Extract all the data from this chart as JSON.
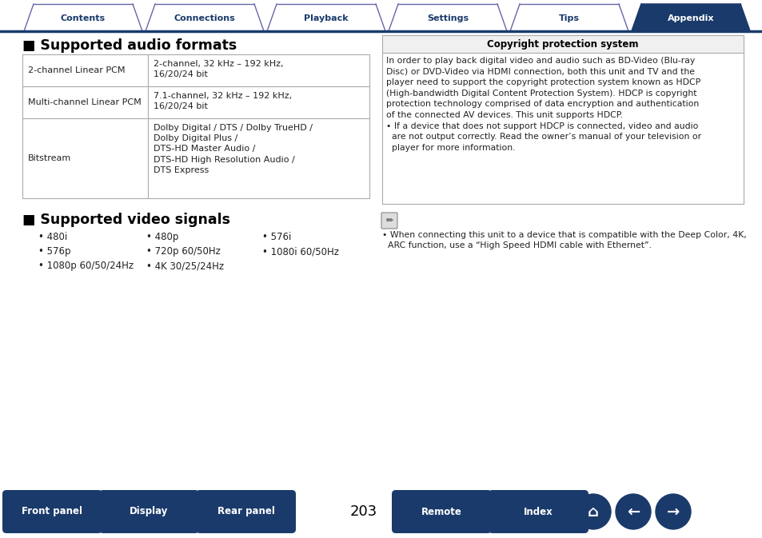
{
  "tab_labels": [
    "Contents",
    "Connections",
    "Playback",
    "Settings",
    "Tips",
    "Appendix"
  ],
  "tab_active": 5,
  "tab_active_color": "#1a3a6b",
  "tab_inactive_color": "#ffffff",
  "tab_border_color": "#6666aa",
  "tab_text_color_active": "#ffffff",
  "tab_text_color_inactive": "#1a3a6b",
  "bg_color": "#ffffff",
  "section1_title": "■ Supported audio formats",
  "audio_table": [
    [
      "2-channel Linear PCM",
      "2-channel, 32 kHz – 192 kHz,\n16/20/24 bit"
    ],
    [
      "Multi-channel Linear PCM",
      "7.1-channel, 32 kHz – 192 kHz,\n16/20/24 bit"
    ],
    [
      "Bitstream",
      "Dolby Digital / DTS / Dolby TrueHD /\nDolby Digital Plus /\nDTS-HD Master Audio /\nDTS-HD High Resolution Audio /\nDTS Express"
    ]
  ],
  "section2_title": "■ Supported video signals",
  "video_signals": [
    [
      "• 480i",
      "• 480p",
      "• 576i"
    ],
    [
      "• 576p",
      "• 720p 60/50Hz",
      "• 1080i 60/50Hz"
    ],
    [
      "• 1080p 60/50/24Hz",
      "• 4K 30/25/24Hz",
      ""
    ]
  ],
  "copyright_box_title": "Copyright protection system",
  "copyright_text": "In order to play back digital video and audio such as BD-Video (Blu-ray\nDisc) or DVD-Video via HDMI connection, both this unit and TV and the\nplayer need to support the copyright protection system known as HDCP\n(High-bandwidth Digital Content Protection System). HDCP is copyright\nprotection technology comprised of data encryption and authentication\nof the connected AV devices. This unit supports HDCP.\n• If a device that does not support HDCP is connected, video and audio\n  are not output correctly. Read the owner’s manual of your television or\n  player for more information.",
  "note_text": "• When connecting this unit to a device that is compatible with the Deep Color, 4K,\n  ARC function, use a “High Speed HDMI cable with Ethernet”.",
  "bottom_buttons_left": [
    "Front panel",
    "Display",
    "Rear panel"
  ],
  "bottom_buttons_right": [
    "Remote",
    "Index"
  ],
  "page_number": "203",
  "bottom_btn_color": "#1a3a6b",
  "bottom_btn_text_color": "#ffffff",
  "tab_line_color": "#1a3a6b",
  "table_border_color": "#aaaaaa",
  "copyright_bg": "#f0f0f0"
}
